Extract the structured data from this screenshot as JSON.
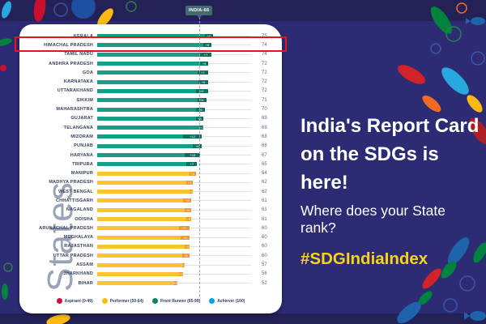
{
  "poster": {
    "badge": "INDIA-66",
    "headline_line1": "India's Report Card",
    "headline_line2": "on the SDGs is here!",
    "question": "Where does your State rank?",
    "hashtag": "#SDGIndiaIndex"
  },
  "chart_data": {
    "type": "bar",
    "orientation": "horizontal",
    "title": "",
    "xlabel": "",
    "ylabel": "States",
    "xlim": [
      0,
      100
    ],
    "grid": false,
    "legend_position": "bottom",
    "india_marker": {
      "label": "INDIA-66",
      "value": 66
    },
    "highlighted_state": "HIMACHAL PRADESH",
    "legend": [
      {
        "key": "aspirant",
        "label": "Aspirant (0-49)",
        "color": "#d0103a"
      },
      {
        "key": "performer",
        "label": "Performer (50-64)",
        "color": "#fdb913"
      },
      {
        "key": "front_runner",
        "label": "Front Runner (65-99)",
        "color": "#00885a"
      },
      {
        "key": "achiever",
        "label": "Achiever (100)",
        "color": "#00a3dc"
      }
    ],
    "states": [
      {
        "name": "KERALA",
        "score": 75,
        "gain": 5,
        "category": "front_runner"
      },
      {
        "name": "HIMACHAL PRADESH",
        "score": 74,
        "gain": 5,
        "category": "front_runner"
      },
      {
        "name": "TAMIL NADU",
        "score": 74,
        "gain": 7,
        "category": "front_runner"
      },
      {
        "name": "ANDHRA PRADESH",
        "score": 72,
        "gain": 5,
        "category": "front_runner"
      },
      {
        "name": "GOA",
        "score": 72,
        "gain": 7,
        "category": "front_runner"
      },
      {
        "name": "KARNATAKA",
        "score": 72,
        "gain": 6,
        "category": "front_runner"
      },
      {
        "name": "UTTARAKHAND",
        "score": 72,
        "gain": 8,
        "category": "front_runner"
      },
      {
        "name": "SIKKIM",
        "score": 71,
        "gain": 6,
        "category": "front_runner"
      },
      {
        "name": "MAHARASHTRA",
        "score": 70,
        "gain": 6,
        "category": "front_runner"
      },
      {
        "name": "GUJARAT",
        "score": 69,
        "gain": 5,
        "category": "front_runner"
      },
      {
        "name": "TELANGANA",
        "score": 69,
        "gain": 2,
        "category": "front_runner"
      },
      {
        "name": "MIZORAM",
        "score": 68,
        "gain": 12,
        "category": "front_runner"
      },
      {
        "name": "PUNJAB",
        "score": 68,
        "gain": 6,
        "category": "front_runner"
      },
      {
        "name": "HARYANA",
        "score": 67,
        "gain": 10,
        "category": "front_runner"
      },
      {
        "name": "TRIPURA",
        "score": 65,
        "gain": 7,
        "category": "front_runner"
      },
      {
        "name": "MANIPUR",
        "score": 64,
        "gain": 4,
        "category": "performer"
      },
      {
        "name": "MADHYA PRADESH",
        "score": 62,
        "gain": 4,
        "category": "performer"
      },
      {
        "name": "WEST BENGAL",
        "score": 62,
        "gain": 2,
        "category": "performer"
      },
      {
        "name": "CHHATTISGARH",
        "score": 61,
        "gain": 5,
        "category": "performer"
      },
      {
        "name": "NAGALAND",
        "score": 61,
        "gain": 4,
        "category": "performer"
      },
      {
        "name": "ODISHA",
        "score": 61,
        "gain": 3,
        "category": "performer"
      },
      {
        "name": "ARUNACHAL PRADESH",
        "score": 60,
        "gain": 7,
        "category": "performer"
      },
      {
        "name": "MEGHALAYA",
        "score": 60,
        "gain": 6,
        "category": "performer"
      },
      {
        "name": "RAJASTHAN",
        "score": 60,
        "gain": 3,
        "category": "performer"
      },
      {
        "name": "UTTAR PRADESH",
        "score": 60,
        "gain": 5,
        "category": "performer"
      },
      {
        "name": "ASSAM",
        "score": 57,
        "gain": 2,
        "category": "performer"
      },
      {
        "name": "JHARKHAND",
        "score": 56,
        "gain": 3,
        "category": "performer"
      },
      {
        "name": "BIHAR",
        "score": 52,
        "gain": 2,
        "category": "performer"
      }
    ]
  },
  "colors": {
    "background": "#2c2b74",
    "top_bottom_band": "#232156",
    "card": "#ffffff",
    "front_runner_bar": "#169e86",
    "front_runner_tip": "#0d6f5c",
    "performer_bar": "#fdc230",
    "performer_tip": "#f09a2a",
    "track": "#e2e2e2",
    "highlight_border": "#e4161c",
    "badge_bg": "#456a70",
    "hashtag_yellow": "#f6d31c"
  }
}
